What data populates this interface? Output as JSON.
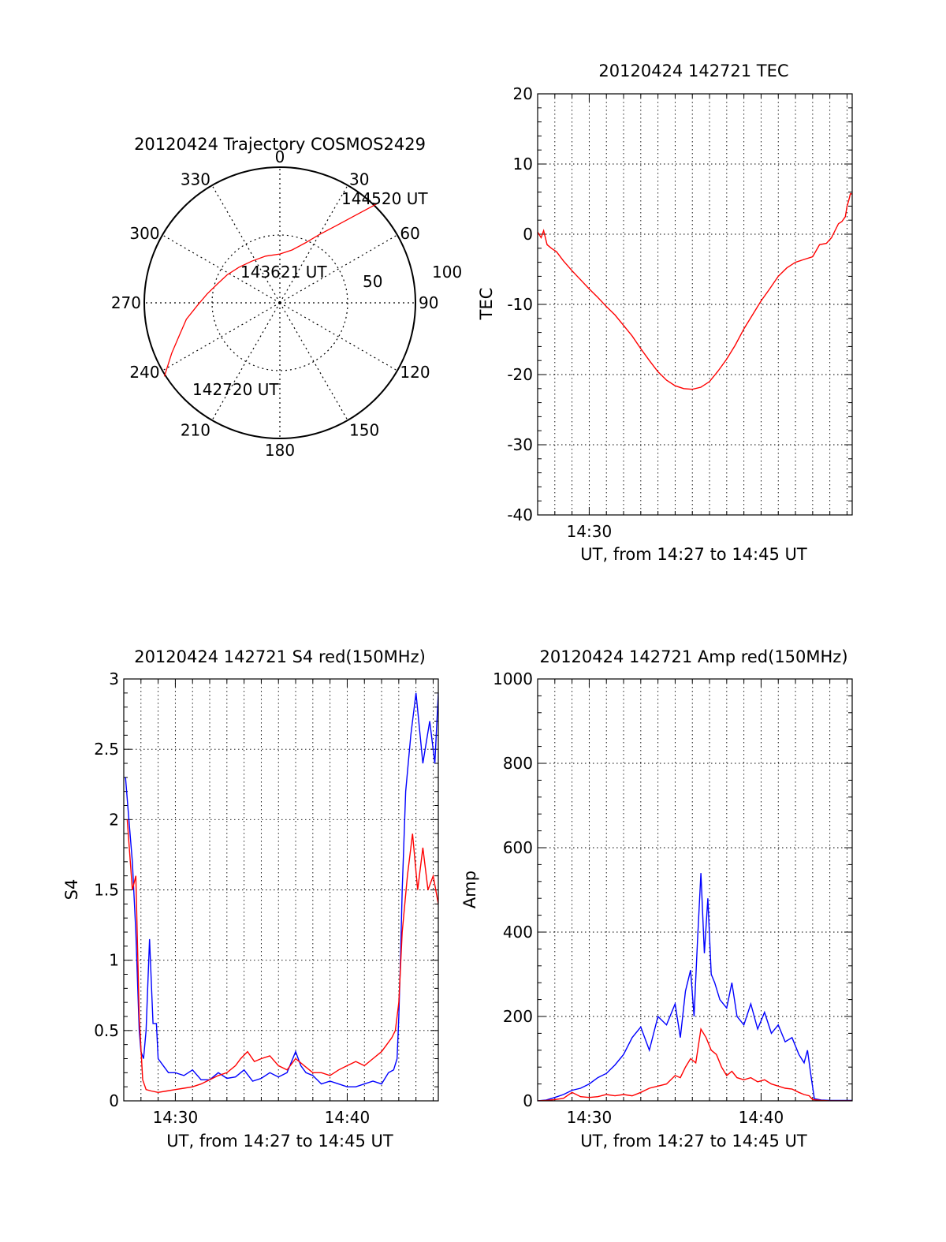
{
  "chart_data": [
    {
      "type": "polar",
      "title": "20120424 Trajectory COSMOS2429",
      "angle_labels": [
        "0",
        "30",
        "60",
        "90",
        "120",
        "150",
        "180",
        "210",
        "240",
        "270",
        "300",
        "330"
      ],
      "radial_labels": [
        "50",
        "100"
      ],
      "rlim": [
        0,
        100
      ],
      "trajectory": {
        "color": "#ff0000",
        "azimuth_deg": [
          237.5,
          245,
          252,
          260,
          268,
          277,
          287,
          298,
          311,
          326,
          343,
          360,
          13,
          23,
          30,
          36,
          41,
          44.4
        ],
        "radius": [
          101,
          88,
          78,
          70,
          61,
          54,
          48,
          44,
          40,
          37,
          36,
          36,
          40,
          48,
          58,
          70,
          86,
          102
        ]
      },
      "annotations": [
        {
          "text": "142720 UT",
          "azimuth_deg": 237.5,
          "radius": 101
        },
        {
          "text": "143621 UT",
          "azimuth_deg": 331,
          "radius": 33
        },
        {
          "text": "144520 UT",
          "azimuth_deg": 44.4,
          "radius": 102
        }
      ]
    },
    {
      "type": "line",
      "title": "20120424 142721 TEC",
      "xlabel": "UT, from 14:27 to 14:45 UT",
      "ylabel": "TEC",
      "xlim": [
        27,
        45.3
      ],
      "ylim": [
        -40,
        20
      ],
      "x_ticks": [
        {
          "value": 30,
          "label": "14:30"
        }
      ],
      "y_ticks": [
        20,
        10,
        0,
        -10,
        -20,
        -30,
        -40
      ],
      "grid": true,
      "series": [
        {
          "color": "#ff0000",
          "x": [
            27.0,
            27.2,
            27.35,
            27.55,
            27.8,
            28.1,
            28.5,
            29.0,
            29.5,
            30.0,
            30.5,
            31.0,
            31.5,
            32.0,
            32.5,
            33.0,
            33.5,
            34.0,
            34.5,
            35.0,
            35.5,
            36.0,
            36.5,
            37.0,
            37.5,
            38.0,
            38.5,
            39.0,
            39.5,
            40.0,
            40.5,
            41.0,
            41.5,
            42.0,
            42.5,
            43.0,
            43.4,
            43.8,
            44.1,
            44.3,
            44.5,
            44.7,
            44.9,
            45.0,
            45.1,
            45.2,
            45.3
          ],
          "y": [
            0.3,
            -0.5,
            0.5,
            -1.5,
            -2.0,
            -2.5,
            -3.8,
            -5.2,
            -6.5,
            -7.8,
            -9.0,
            -10.3,
            -11.5,
            -13.0,
            -14.5,
            -16.3,
            -18.0,
            -19.6,
            -20.8,
            -21.6,
            -22.0,
            -22.1,
            -21.8,
            -21.0,
            -19.5,
            -17.8,
            -15.8,
            -13.5,
            -11.5,
            -9.5,
            -7.8,
            -6.0,
            -4.8,
            -4.0,
            -3.6,
            -3.2,
            -1.5,
            -1.3,
            -0.5,
            0.5,
            1.5,
            1.8,
            2.5,
            4.0,
            4.8,
            5.8,
            5.7
          ]
        }
      ]
    },
    {
      "type": "line",
      "title": "20120424 142721 S4 red(150MHz)",
      "xlabel": "UT, from 14:27 to 14:45 UT",
      "ylabel": "S4",
      "xlim": [
        27,
        45.3
      ],
      "ylim": [
        0,
        3
      ],
      "x_ticks": [
        {
          "value": 30,
          "label": "14:30"
        },
        {
          "value": 40,
          "label": "14:40"
        }
      ],
      "y_ticks": [
        3,
        2.5,
        2,
        1.5,
        1,
        0.5,
        0
      ],
      "grid": true,
      "series": [
        {
          "color": "#0000ff",
          "x": [
            27.1,
            27.3,
            27.5,
            27.7,
            27.9,
            28.0,
            28.15,
            28.3,
            28.5,
            28.7,
            28.9,
            29.0,
            29.3,
            29.6,
            30.0,
            30.5,
            31.0,
            31.5,
            32.0,
            32.5,
            33.0,
            33.5,
            34.0,
            34.5,
            35.0,
            35.5,
            36.0,
            36.5,
            37.0,
            37.3,
            37.6,
            38.0,
            38.5,
            39.0,
            39.5,
            40.0,
            40.5,
            41.0,
            41.5,
            42.0,
            42.4,
            42.7,
            42.9,
            43.0,
            43.1,
            43.2,
            43.4,
            43.7,
            44.0,
            44.4,
            44.8,
            45.1,
            45.3
          ],
          "y": [
            2.3,
            2.0,
            1.7,
            1.2,
            0.5,
            0.35,
            0.3,
            0.5,
            1.15,
            0.55,
            0.55,
            0.3,
            0.25,
            0.2,
            0.2,
            0.18,
            0.22,
            0.15,
            0.15,
            0.2,
            0.16,
            0.17,
            0.22,
            0.14,
            0.16,
            0.2,
            0.17,
            0.2,
            0.35,
            0.25,
            0.2,
            0.18,
            0.12,
            0.14,
            0.12,
            0.1,
            0.1,
            0.12,
            0.14,
            0.12,
            0.2,
            0.22,
            0.3,
            0.6,
            1.0,
            1.5,
            2.2,
            2.6,
            2.9,
            2.4,
            2.7,
            2.4,
            2.9
          ]
        },
        {
          "color": "#ff0000",
          "x": [
            27.2,
            27.5,
            27.7,
            27.9,
            28.1,
            28.3,
            28.6,
            29.0,
            29.5,
            30.0,
            30.5,
            31.0,
            31.5,
            32.0,
            32.5,
            33.0,
            33.5,
            33.8,
            34.2,
            34.6,
            35.0,
            35.5,
            36.0,
            36.5,
            37.0,
            37.5,
            38.0,
            38.5,
            39.0,
            39.5,
            40.0,
            40.5,
            41.0,
            41.5,
            42.0,
            42.3,
            42.6,
            42.8,
            43.0,
            43.2,
            43.5,
            43.8,
            44.1,
            44.4,
            44.7,
            45.0,
            45.3
          ],
          "y": [
            2.0,
            1.5,
            1.6,
            0.6,
            0.15,
            0.08,
            0.07,
            0.06,
            0.07,
            0.08,
            0.09,
            0.1,
            0.12,
            0.15,
            0.18,
            0.2,
            0.25,
            0.3,
            0.35,
            0.28,
            0.3,
            0.32,
            0.25,
            0.22,
            0.3,
            0.25,
            0.2,
            0.2,
            0.18,
            0.22,
            0.25,
            0.28,
            0.25,
            0.3,
            0.35,
            0.4,
            0.45,
            0.5,
            0.7,
            1.2,
            1.6,
            1.9,
            1.5,
            1.8,
            1.5,
            1.6,
            1.4
          ]
        }
      ]
    },
    {
      "type": "line",
      "title": "20120424 142721 Amp red(150MHz)",
      "xlabel": "UT, from 14:27 to 14:45 UT",
      "ylabel": "Amp",
      "xlim": [
        27,
        45.3
      ],
      "ylim": [
        0,
        1000
      ],
      "x_ticks": [
        {
          "value": 30,
          "label": "14:30"
        },
        {
          "value": 40,
          "label": "14:40"
        }
      ],
      "y_ticks": [
        1000,
        800,
        600,
        400,
        200,
        0
      ],
      "grid": true,
      "series": [
        {
          "color": "#0000ff",
          "x": [
            27.0,
            27.5,
            28.0,
            28.5,
            29.0,
            29.5,
            30.0,
            30.5,
            31.0,
            31.5,
            32.0,
            32.5,
            33.0,
            33.5,
            34.0,
            34.5,
            35.0,
            35.3,
            35.6,
            35.9,
            36.1,
            36.3,
            36.5,
            36.7,
            36.9,
            37.1,
            37.3,
            37.6,
            38.0,
            38.3,
            38.6,
            39.0,
            39.4,
            39.8,
            40.2,
            40.6,
            41.0,
            41.4,
            41.8,
            42.2,
            42.5,
            42.7,
            42.9,
            43.1,
            43.5,
            44.0,
            45.3
          ],
          "y": [
            0,
            2,
            8,
            15,
            25,
            30,
            40,
            55,
            65,
            85,
            110,
            150,
            175,
            120,
            200,
            180,
            230,
            150,
            260,
            310,
            200,
            380,
            540,
            350,
            480,
            300,
            280,
            240,
            220,
            280,
            200,
            180,
            230,
            170,
            210,
            160,
            180,
            140,
            150,
            110,
            90,
            120,
            60,
            5,
            2,
            1,
            1
          ]
        },
        {
          "color": "#ff0000",
          "x": [
            27.0,
            27.5,
            28.0,
            28.5,
            29.0,
            29.5,
            30.0,
            30.5,
            31.0,
            31.5,
            32.0,
            32.5,
            33.0,
            33.5,
            34.0,
            34.5,
            35.0,
            35.3,
            35.6,
            35.9,
            36.2,
            36.5,
            36.8,
            37.1,
            37.4,
            37.7,
            38.0,
            38.3,
            38.6,
            39.0,
            39.4,
            39.8,
            40.2,
            40.6,
            41.0,
            41.4,
            41.8,
            42.2,
            42.5,
            42.8,
            43.0,
            43.5,
            44.0,
            45.3
          ],
          "y": [
            0,
            1,
            3,
            6,
            20,
            10,
            8,
            10,
            15,
            12,
            15,
            12,
            20,
            30,
            35,
            40,
            60,
            55,
            80,
            100,
            90,
            170,
            150,
            120,
            110,
            80,
            60,
            70,
            55,
            50,
            55,
            45,
            50,
            40,
            35,
            30,
            28,
            20,
            15,
            12,
            3,
            1,
            0,
            0
          ]
        }
      ]
    }
  ]
}
